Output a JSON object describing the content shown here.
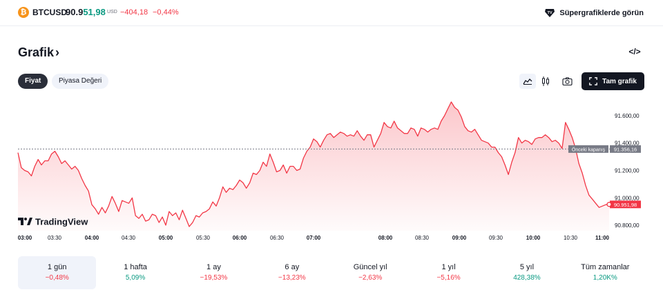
{
  "ticker": {
    "symbol": "BTCUSD",
    "price_main": "90.9",
    "price_highlight": "51,98",
    "currency": "USD",
    "change": "−404,18",
    "change_percent": "−0,44%",
    "icon": "bitcoin-icon"
  },
  "header": {
    "supercharts_label": "Süpergrafiklerde görün",
    "supercharts_icon": "tradingview-super-icon"
  },
  "section": {
    "title": "Grafik",
    "title_icon": "chevron-right-icon",
    "embed_icon": "code-embed-icon"
  },
  "toggles": {
    "price_label": "Fiyat",
    "market_cap_label": "Piyasa Değeri"
  },
  "toolbar": {
    "area_icon": "area-chart-icon",
    "candle_icon": "candlestick-icon",
    "camera_icon": "camera-icon",
    "fullscreen_label": "Tam grafik",
    "fullscreen_icon": "fullscreen-icon"
  },
  "brand": {
    "label": "TradingView"
  },
  "chart_data": {
    "type": "area",
    "symbol": "BTCUSD",
    "x_tick_labels": [
      "03:00",
      "03:30",
      "04:00",
      "04:30",
      "05:00",
      "05:30",
      "06:00",
      "06:30",
      "07:00",
      "08:00",
      "08:30",
      "09:00",
      "09:30",
      "10:00",
      "10:30",
      "11:00"
    ],
    "bold_x_ticks": [
      "03:00",
      "04:00",
      "05:00",
      "06:00",
      "07:00",
      "08:00",
      "09:00",
      "10:00",
      "11:00"
    ],
    "y_tick_labels": [
      "91.600,00",
      "91.400,00",
      "91.200,00",
      "91.000,00",
      "90.800,00"
    ],
    "ylim": [
      90760,
      91700
    ],
    "x_range_minutes": [
      0,
      480
    ],
    "previous_close": {
      "label": "Önceki kapanış",
      "value": 91356.16,
      "value_label": "91.356,16"
    },
    "last_value": {
      "value": 90951.98,
      "value_label": "90.951,98"
    },
    "series": [
      {
        "color": "#f23645",
        "points": [
          [
            0,
            91330
          ],
          [
            5,
            91220
          ],
          [
            10,
            91200
          ],
          [
            15,
            91190
          ],
          [
            20,
            91160
          ],
          [
            25,
            91230
          ],
          [
            30,
            91280
          ],
          [
            35,
            91240
          ],
          [
            40,
            91270
          ],
          [
            45,
            91270
          ],
          [
            50,
            91320
          ],
          [
            55,
            91340
          ],
          [
            60,
            91300
          ],
          [
            65,
            91250
          ],
          [
            70,
            91270
          ],
          [
            75,
            91240
          ],
          [
            80,
            91210
          ],
          [
            85,
            91230
          ],
          [
            90,
            91200
          ],
          [
            95,
            91140
          ],
          [
            100,
            91090
          ],
          [
            105,
            91050
          ],
          [
            110,
            90950
          ],
          [
            115,
            90920
          ],
          [
            120,
            90880
          ],
          [
            125,
            90930
          ],
          [
            130,
            90890
          ],
          [
            135,
            90940
          ],
          [
            140,
            91010
          ],
          [
            145,
            90960
          ],
          [
            150,
            90900
          ],
          [
            155,
            90980
          ],
          [
            160,
            90970
          ],
          [
            165,
            90960
          ],
          [
            170,
            91000
          ],
          [
            175,
            90870
          ],
          [
            180,
            90850
          ],
          [
            185,
            90880
          ],
          [
            190,
            90830
          ],
          [
            195,
            90840
          ],
          [
            200,
            90880
          ],
          [
            205,
            90870
          ],
          [
            210,
            90820
          ],
          [
            215,
            90860
          ],
          [
            220,
            90800
          ],
          [
            225,
            90900
          ],
          [
            230,
            90870
          ],
          [
            235,
            90890
          ],
          [
            240,
            90840
          ],
          [
            245,
            90910
          ],
          [
            250,
            90850
          ],
          [
            255,
            90790
          ],
          [
            260,
            90820
          ],
          [
            265,
            90870
          ],
          [
            270,
            90860
          ],
          [
            275,
            90890
          ],
          [
            280,
            90900
          ],
          [
            285,
            90920
          ],
          [
            290,
            90970
          ],
          [
            295,
            90940
          ],
          [
            300,
            91000
          ],
          [
            305,
            91080
          ],
          [
            310,
            91040
          ],
          [
            315,
            91070
          ],
          [
            320,
            91060
          ],
          [
            325,
            91090
          ],
          [
            330,
            91130
          ],
          [
            335,
            91110
          ],
          [
            340,
            91070
          ],
          [
            345,
            91110
          ],
          [
            350,
            91180
          ],
          [
            355,
            91170
          ],
          [
            360,
            91200
          ],
          [
            365,
            91260
          ],
          [
            370,
            91230
          ],
          [
            375,
            91320
          ],
          [
            380,
            91260
          ],
          [
            385,
            91190
          ],
          [
            390,
            91200
          ],
          [
            395,
            91240
          ],
          [
            400,
            91180
          ],
          [
            405,
            91230
          ],
          [
            410,
            91230
          ],
          [
            415,
            91200
          ],
          [
            420,
            91210
          ],
          [
            425,
            91290
          ],
          [
            430,
            91340
          ],
          [
            435,
            91370
          ],
          [
            440,
            91430
          ],
          [
            445,
            91410
          ],
          [
            450,
            91370
          ],
          [
            455,
            91420
          ],
          [
            460,
            91460
          ],
          [
            465,
            91470
          ],
          [
            470,
            91440
          ],
          [
            475,
            91460
          ],
          [
            480,
            91480
          ],
          [
            485,
            91470
          ],
          [
            490,
            91450
          ],
          [
            495,
            91460
          ],
          [
            500,
            91450
          ],
          [
            505,
            91490
          ],
          [
            510,
            91450
          ],
          [
            515,
            91420
          ],
          [
            520,
            91460
          ],
          [
            525,
            91460
          ],
          [
            530,
            91370
          ],
          [
            535,
            91420
          ],
          [
            540,
            91470
          ],
          [
            545,
            91550
          ],
          [
            550,
            91520
          ],
          [
            555,
            91510
          ],
          [
            560,
            91560
          ],
          [
            565,
            91510
          ],
          [
            570,
            91490
          ],
          [
            575,
            91470
          ],
          [
            580,
            91470
          ],
          [
            585,
            91510
          ],
          [
            590,
            91500
          ],
          [
            595,
            91450
          ],
          [
            600,
            91510
          ],
          [
            605,
            91500
          ],
          [
            610,
            91480
          ],
          [
            615,
            91500
          ],
          [
            620,
            91510
          ],
          [
            625,
            91500
          ],
          [
            630,
            91560
          ],
          [
            635,
            91600
          ],
          [
            640,
            91650
          ],
          [
            645,
            91700
          ],
          [
            650,
            91660
          ],
          [
            655,
            91640
          ],
          [
            660,
            91590
          ],
          [
            665,
            91520
          ],
          [
            670,
            91490
          ],
          [
            675,
            91480
          ],
          [
            680,
            91500
          ],
          [
            685,
            91460
          ],
          [
            690,
            91420
          ],
          [
            695,
            91410
          ],
          [
            700,
            91400
          ],
          [
            705,
            91370
          ],
          [
            710,
            91370
          ],
          [
            715,
            91330
          ],
          [
            720,
            91300
          ],
          [
            725,
            91240
          ],
          [
            730,
            91170
          ],
          [
            735,
            91260
          ],
          [
            740,
            91330
          ],
          [
            745,
            91440
          ],
          [
            750,
            91400
          ],
          [
            755,
            91420
          ],
          [
            760,
            91410
          ],
          [
            765,
            91390
          ],
          [
            770,
            91430
          ],
          [
            775,
            91440
          ],
          [
            780,
            91440
          ],
          [
            785,
            91460
          ],
          [
            790,
            91440
          ],
          [
            795,
            91410
          ],
          [
            800,
            91420
          ],
          [
            805,
            91400
          ],
          [
            810,
            91360
          ],
          [
            815,
            91550
          ],
          [
            820,
            91500
          ],
          [
            825,
            91440
          ],
          [
            830,
            91360
          ],
          [
            835,
            91250
          ],
          [
            840,
            91180
          ],
          [
            845,
            91090
          ],
          [
            850,
            91020
          ],
          [
            855,
            90990
          ],
          [
            860,
            90960
          ],
          [
            865,
            90930
          ],
          [
            870,
            90940
          ],
          [
            875,
            90950
          ],
          [
            880,
            90952
          ]
        ]
      }
    ]
  },
  "periods": [
    {
      "label": "1 gün",
      "value": "−0,48%",
      "trend": "neg",
      "active": true
    },
    {
      "label": "1 hafta",
      "value": "5,09%",
      "trend": "pos",
      "active": false
    },
    {
      "label": "1 ay",
      "value": "−19,53%",
      "trend": "neg",
      "active": false
    },
    {
      "label": "6 ay",
      "value": "−13,23%",
      "trend": "neg",
      "active": false
    },
    {
      "label": "Güncel yıl",
      "value": "−2,63%",
      "trend": "neg",
      "active": false
    },
    {
      "label": "1 yıl",
      "value": "−5,16%",
      "trend": "neg",
      "active": false
    },
    {
      "label": "5 yıl",
      "value": "428,38%",
      "trend": "pos",
      "active": false
    },
    {
      "label": "Tüm zamanlar",
      "value": "1,20K%",
      "trend": "pos",
      "active": false
    }
  ]
}
